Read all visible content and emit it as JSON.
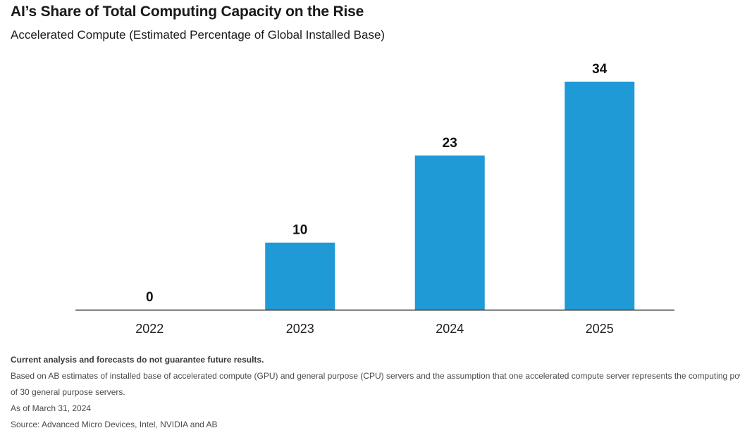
{
  "header": {
    "title": "AI’s Share of Total Computing Capacity on the Rise",
    "subtitle": "Accelerated Compute (Estimated Percentage of Global Installed Base)"
  },
  "chart_data": {
    "type": "bar",
    "categories": [
      "2022",
      "2023",
      "2024",
      "2025"
    ],
    "values": [
      0,
      10,
      23,
      34
    ],
    "data_labels": [
      "0",
      "10",
      "23",
      "34"
    ],
    "title": "AI’s Share of Total Computing Capacity on the Rise",
    "subtitle": "Accelerated Compute (Estimated Percentage of Global Installed Base)",
    "xlabel": "",
    "ylabel": "",
    "ylim": [
      0,
      34
    ],
    "grid": false,
    "legend": "none",
    "bar_color": "#1f9ad6",
    "axis_color": "#333333"
  },
  "footer": {
    "disclaimer": "Current analysis and forecasts do not guarantee future results.",
    "note_line1": "Based on AB estimates of installed base of accelerated compute (GPU) and general purpose (CPU) servers and the assumption that one accelerated compute server represents the computing power",
    "note_line2": "of 30 general purpose servers.",
    "date": "As of March 31, 2024",
    "source": "Source: Advanced Micro Devices, Intel, NVIDIA and AB"
  }
}
